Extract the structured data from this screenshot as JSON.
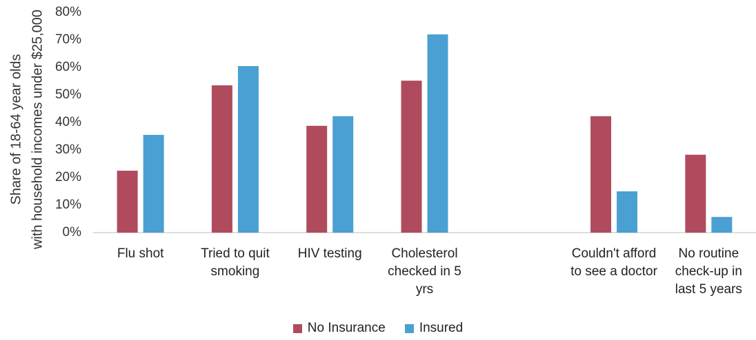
{
  "chart_data": {
    "type": "bar",
    "ylabel": [
      "Share of 18-64 year olds",
      "with household incomes under $25,000"
    ],
    "categories": [
      "Flu shot",
      "Tried to quit smoking",
      "HIV testing",
      "Cholesterol checked in 5 yrs",
      null,
      "Couldn't afford to see a doctor",
      "No routine check-up in last 5 years"
    ],
    "series": [
      {
        "name": "No Insurance",
        "color": "#b04b5e",
        "values": [
          22.5,
          53.5,
          38.8,
          55.2,
          null,
          42.3,
          28.3
        ]
      },
      {
        "name": "Insured",
        "color": "#4aa0d2",
        "values": [
          35.5,
          60.5,
          42.3,
          72,
          null,
          15,
          5.7
        ]
      }
    ],
    "ylim": [
      0,
      80
    ],
    "yticks": [
      {
        "value": 0,
        "label": "0%"
      },
      {
        "value": 10,
        "label": "10%"
      },
      {
        "value": 20,
        "label": "20%"
      },
      {
        "value": 30,
        "label": "30%"
      },
      {
        "value": 40,
        "label": "40%"
      },
      {
        "value": 50,
        "label": "50%"
      },
      {
        "value": 60,
        "label": "60%"
      },
      {
        "value": 70,
        "label": "70%"
      },
      {
        "value": 80,
        "label": "80%"
      }
    ],
    "grid": false,
    "legend": "bottom"
  }
}
